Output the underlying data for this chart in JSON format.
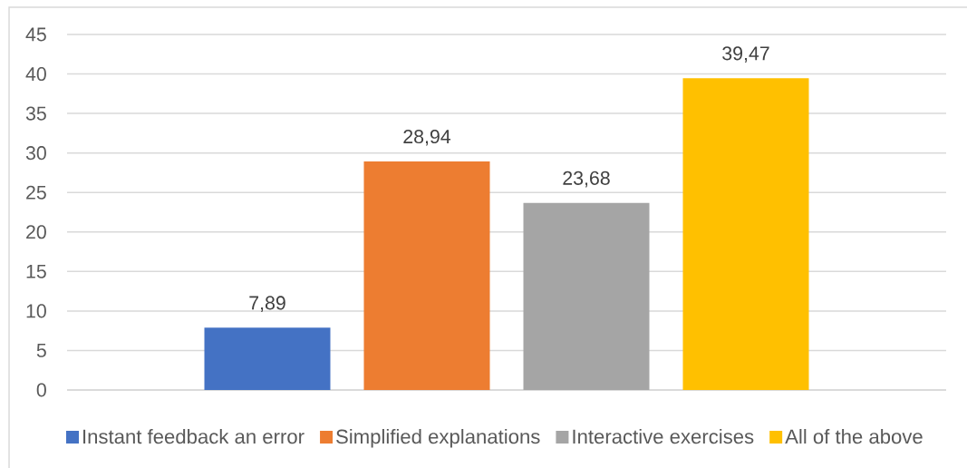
{
  "chart_data": {
    "type": "bar",
    "categories": [
      null
    ],
    "series": [
      {
        "name": "Instant feedback an error",
        "color": "#4472c4",
        "values": [
          7.89
        ],
        "value_labels": [
          "7,89"
        ]
      },
      {
        "name": "Simplified explanations",
        "color": "#ed7d31",
        "values": [
          28.94
        ],
        "value_labels": [
          "28,94"
        ]
      },
      {
        "name": "Interactive exercises",
        "color": "#a5a5a5",
        "values": [
          23.68
        ],
        "value_labels": [
          "23,68"
        ]
      },
      {
        "name": "All of the above",
        "color": "#ffc000",
        "values": [
          39.47
        ],
        "value_labels": [
          "39,47"
        ]
      }
    ],
    "ylim": [
      0,
      45
    ],
    "yticks": [
      0,
      5,
      10,
      15,
      20,
      25,
      30,
      35,
      40,
      45
    ],
    "grid": "y",
    "legend": "bottom"
  }
}
